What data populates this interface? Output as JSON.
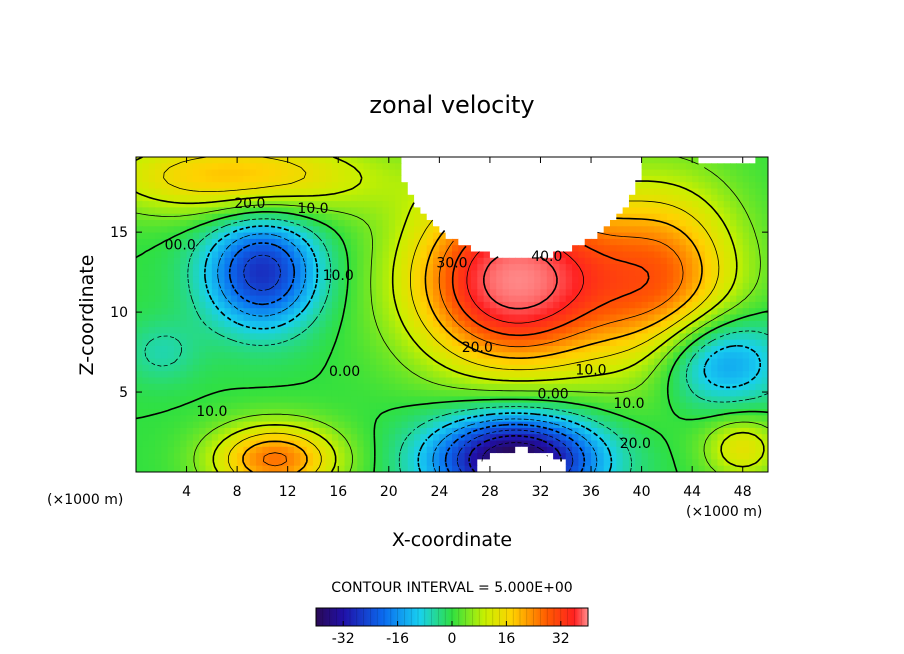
{
  "chart_data": {
    "type": "heatmap",
    "title": "zonal velocity",
    "xlabel": "X-coordinate",
    "ylabel": "Z-coordinate",
    "x_unit": "(×1000 m)",
    "z_unit": "(×1000 m)",
    "xlim": [
      0,
      50
    ],
    "ylim": [
      0,
      19.7
    ],
    "x_ticks": [
      "4",
      "8",
      "12",
      "16",
      "20",
      "24",
      "28",
      "32",
      "36",
      "40",
      "44",
      "48"
    ],
    "x_tick_values": [
      4,
      8,
      12,
      16,
      20,
      24,
      28,
      32,
      36,
      40,
      44,
      48
    ],
    "y_ticks": [
      "15",
      "10",
      "5"
    ],
    "y_tick_values": [
      15,
      10,
      5
    ],
    "contour_interval_text": "CONTOUR INTERVAL = 5.000E+00",
    "contour_interval": 5,
    "colorbar": {
      "range": [
        -40,
        40
      ],
      "ticks": [
        "-32",
        "-16",
        "0",
        "16",
        "32"
      ],
      "tick_values": [
        -32,
        -16,
        0,
        16,
        32
      ]
    },
    "contour_labels": [
      {
        "text": "20.0",
        "x": 9.0,
        "z": 16.5
      },
      {
        "text": "10.0",
        "x": 14.0,
        "z": 16.2
      },
      {
        "text": "00.0",
        "x": 3.5,
        "z": 13.9
      },
      {
        "text": "10.0",
        "x": 16.0,
        "z": 12.0
      },
      {
        "text": "30.0",
        "x": 25.0,
        "z": 12.8
      },
      {
        "text": "40.0",
        "x": 32.5,
        "z": 13.2
      },
      {
        "text": "0.00",
        "x": 16.5,
        "z": 6.0
      },
      {
        "text": "20.0",
        "x": 27.0,
        "z": 7.5
      },
      {
        "text": "10.0",
        "x": 36.0,
        "z": 6.1
      },
      {
        "text": "0.00",
        "x": 33.0,
        "z": 4.6
      },
      {
        "text": "10.0",
        "x": 39.0,
        "z": 4.0
      },
      {
        "text": "20.0",
        "x": 39.5,
        "z": 1.5
      },
      {
        "text": "10.0",
        "x": 6.0,
        "z": 3.5
      }
    ],
    "colors": {
      "min": "#1a0a7a",
      "negative_mid": "#14b4ff",
      "zero": "#3ee85a",
      "positive_mid": "#ffe000",
      "max": "#ff1a1a",
      "masked": "#ffffff"
    }
  }
}
